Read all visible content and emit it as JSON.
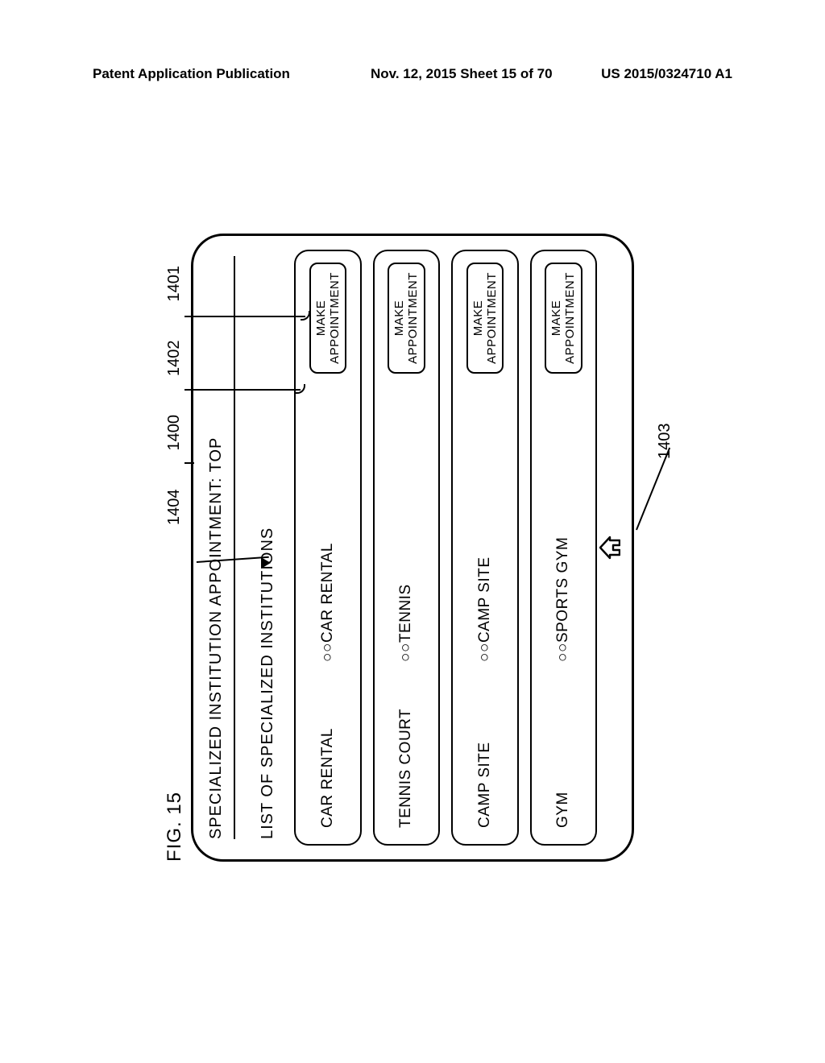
{
  "header": {
    "left": "Patent Application Publication",
    "center": "Nov. 12, 2015  Sheet 15 of 70",
    "right": "US 2015/0324710 A1"
  },
  "figure": {
    "label": "FIG. 15",
    "refs": {
      "r1404": "1404",
      "r1400": "1400",
      "r1402": "1402",
      "r1401": "1401",
      "r1403": "1403"
    },
    "screen_title": "SPECIALIZED INSTITUTION APPOINTMENT: TOP",
    "list_heading": "LIST OF SPECIALIZED INSTITUTIONS",
    "button_label": "MAKE\nAPPOINTMENT",
    "rows": [
      {
        "category": "CAR RENTAL",
        "name": "○○CAR RENTAL"
      },
      {
        "category": "TENNIS COURT",
        "name": "○○TENNIS"
      },
      {
        "category": "CAMP SITE",
        "name": "○○CAMP SITE"
      },
      {
        "category": "GYM",
        "name": "○○SPORTS GYM"
      }
    ]
  },
  "style": {
    "stroke": "#000000",
    "bg": "#ffffff",
    "border_radius_frame": 40,
    "border_radius_row": 18,
    "font_family": "Arial, Helvetica, sans-serif"
  }
}
